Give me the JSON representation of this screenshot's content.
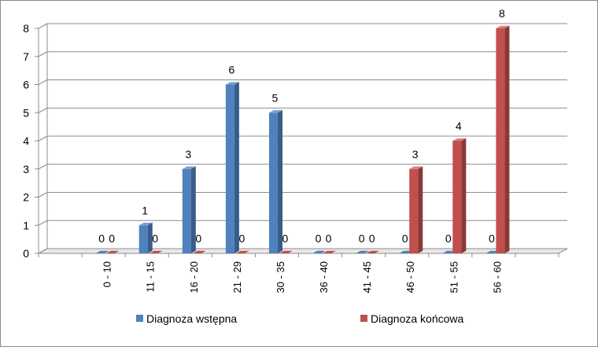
{
  "chart_data": {
    "type": "bar",
    "categories": [
      "",
      "0 - 10",
      "11 - 15",
      "16 - 20",
      "21 - 29",
      "30 - 35",
      "36 - 40",
      "41 - 45",
      "46 - 50",
      "51 - 55",
      "56 - 60",
      ""
    ],
    "series": [
      {
        "name": "Diagnoza wstępna",
        "values": [
          null,
          0,
          1,
          3,
          6,
          5,
          0,
          0,
          0,
          0,
          0,
          null
        ],
        "color": "#4f81bd",
        "color_side": "#385d8a",
        "color_top": "#7aa1d2"
      },
      {
        "name": "Diagnoza końcowa",
        "values": [
          null,
          0,
          0,
          0,
          0,
          0,
          0,
          0,
          3,
          4,
          8,
          null
        ],
        "color": "#c0504d",
        "color_side": "#8c3836",
        "color_top": "#d9807e"
      }
    ],
    "ylim": [
      0,
      8
    ],
    "yticks": [
      0,
      1,
      2,
      3,
      4,
      5,
      6,
      7,
      8
    ],
    "grid": true,
    "legend": "bottom",
    "title": "",
    "xlabel": "",
    "ylabel": ""
  }
}
